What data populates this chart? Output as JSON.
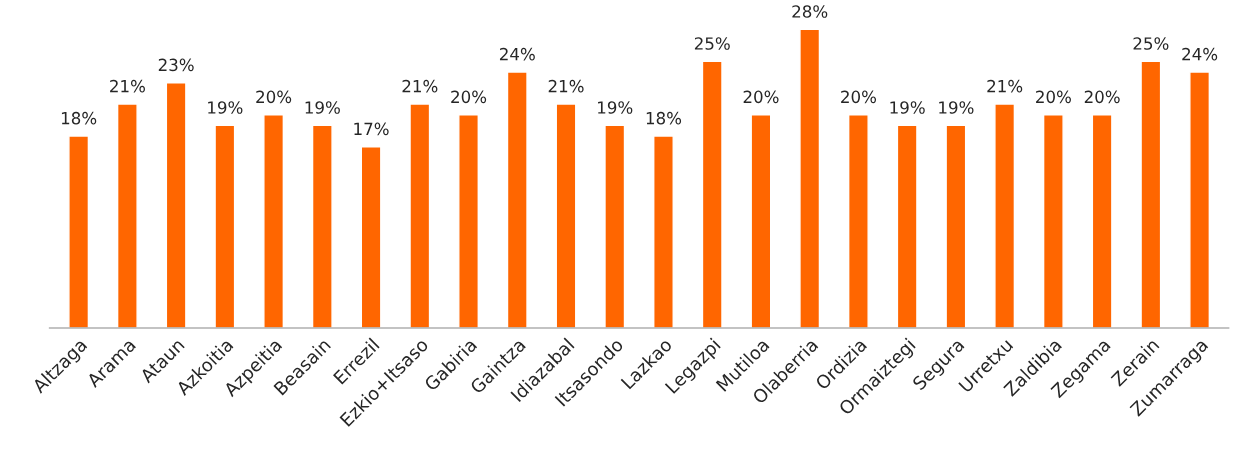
{
  "chart_data": {
    "type": "bar",
    "categories": [
      "Altzaga",
      "Arama",
      "Ataun",
      "Azkoitia",
      "Azpeitia",
      "Beasain",
      "Errezil",
      "Ezkio+Itsaso",
      "Gabiria",
      "Gaintza",
      "Idiazabal",
      "Itsasondo",
      "Lazkao",
      "Legazpi",
      "Mutiloa",
      "Olaberria",
      "Ordizia",
      "Ormaiztegi",
      "Segura",
      "Urretxu",
      "Zaldibia",
      "Zegama",
      "Zerain",
      "Zumarraga"
    ],
    "values": [
      18,
      21,
      23,
      19,
      20,
      19,
      17,
      21,
      20,
      24,
      21,
      19,
      18,
      25,
      20,
      28,
      20,
      19,
      19,
      21,
      20,
      20,
      25,
      24
    ],
    "value_labels": [
      "18%",
      "21%",
      "23%",
      "19%",
      "20%",
      "19%",
      "17%",
      "21%",
      "20%",
      "24%",
      "21%",
      "19%",
      "18%",
      "25%",
      "20%",
      "28%",
      "20%",
      "19%",
      "19%",
      "21%",
      "20%",
      "20%",
      "25%",
      "24%"
    ],
    "color": "#ff6600",
    "grid": false,
    "legend": false
  }
}
